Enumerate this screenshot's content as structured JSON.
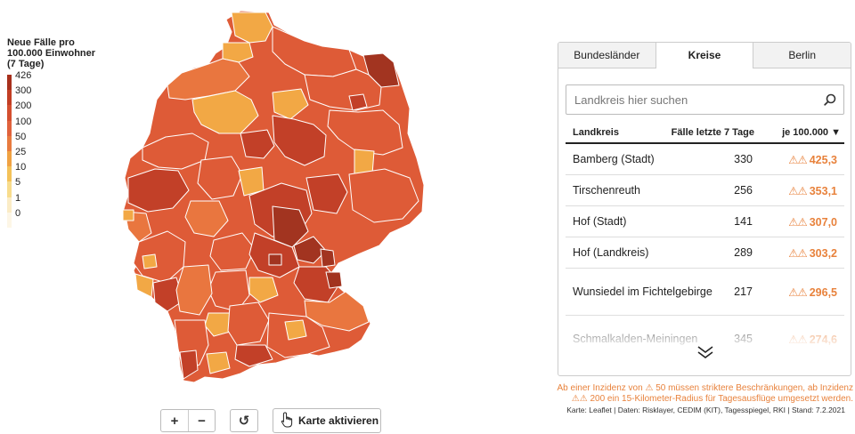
{
  "legend": {
    "title": "Neue Fälle pro\n100.000 Einwohner\n(7 Tage)",
    "ticks": [
      "426",
      "300",
      "200",
      "100",
      "50",
      "25",
      "10",
      "5",
      "1",
      "0"
    ],
    "colors": [
      "#a7301c",
      "#c23e24",
      "#d44f2f",
      "#e0623c",
      "#e87b3f",
      "#f0a243",
      "#f4c259",
      "#f8dc8c",
      "#fbecc6",
      "#fdf6e6"
    ]
  },
  "map": {
    "colors": {
      "high": "#a23420",
      "red_dark": "#c24028",
      "red": "#de5b37",
      "orange": "#e9763f",
      "light_orange": "#f2a845",
      "border": "#ffffff"
    }
  },
  "controls": {
    "zoom_in": "+",
    "zoom_out": "−",
    "reset_icon": "↺",
    "activate_label": "Karte aktivieren"
  },
  "panel": {
    "tabs": [
      {
        "label": "Bundesländer",
        "active": false
      },
      {
        "label": "Kreise",
        "active": true
      },
      {
        "label": "Berlin",
        "active": false
      }
    ],
    "search_placeholder": "Landkreis hier suchen",
    "columns": {
      "name": "Landkreis",
      "cases": "Fälle letzte 7 Tage",
      "rate": "je 100.000 ▼"
    },
    "rows": [
      {
        "name": "Bamberg (Stadt)",
        "cases": "330",
        "warning": "⚠⚠",
        "rate": "425,3"
      },
      {
        "name": "Tirschenreuth",
        "cases": "256",
        "warning": "⚠⚠",
        "rate": "353,1"
      },
      {
        "name": "Hof (Stadt)",
        "cases": "141",
        "warning": "⚠⚠",
        "rate": "307,0"
      },
      {
        "name": "Hof (Landkreis)",
        "cases": "289",
        "warning": "⚠⚠",
        "rate": "303,2"
      },
      {
        "name": "Wunsiedel im Fichtelgebirge",
        "cases": "217",
        "warning": "⚠⚠",
        "rate": "296,5"
      },
      {
        "name": "Schmalkalden-Meiningen",
        "cases": "345",
        "warning": "⚠⚠",
        "rate": "274,6"
      }
    ],
    "more_icon": "chevron-double-down-icon"
  },
  "note": "Ab einer Inzidenz von ⚠ 50 müssen striktere Beschränkungen, ab Inzidenz ⚠⚠ 200 ein 15-Kilometer-Radius für Tagesausflüge umgesetzt werden.",
  "credit": "Karte: Leaflet | Daten: Risklayer, CEDIM (KIT), Tagesspiegel, RKI | Stand: 7.2.2021"
}
